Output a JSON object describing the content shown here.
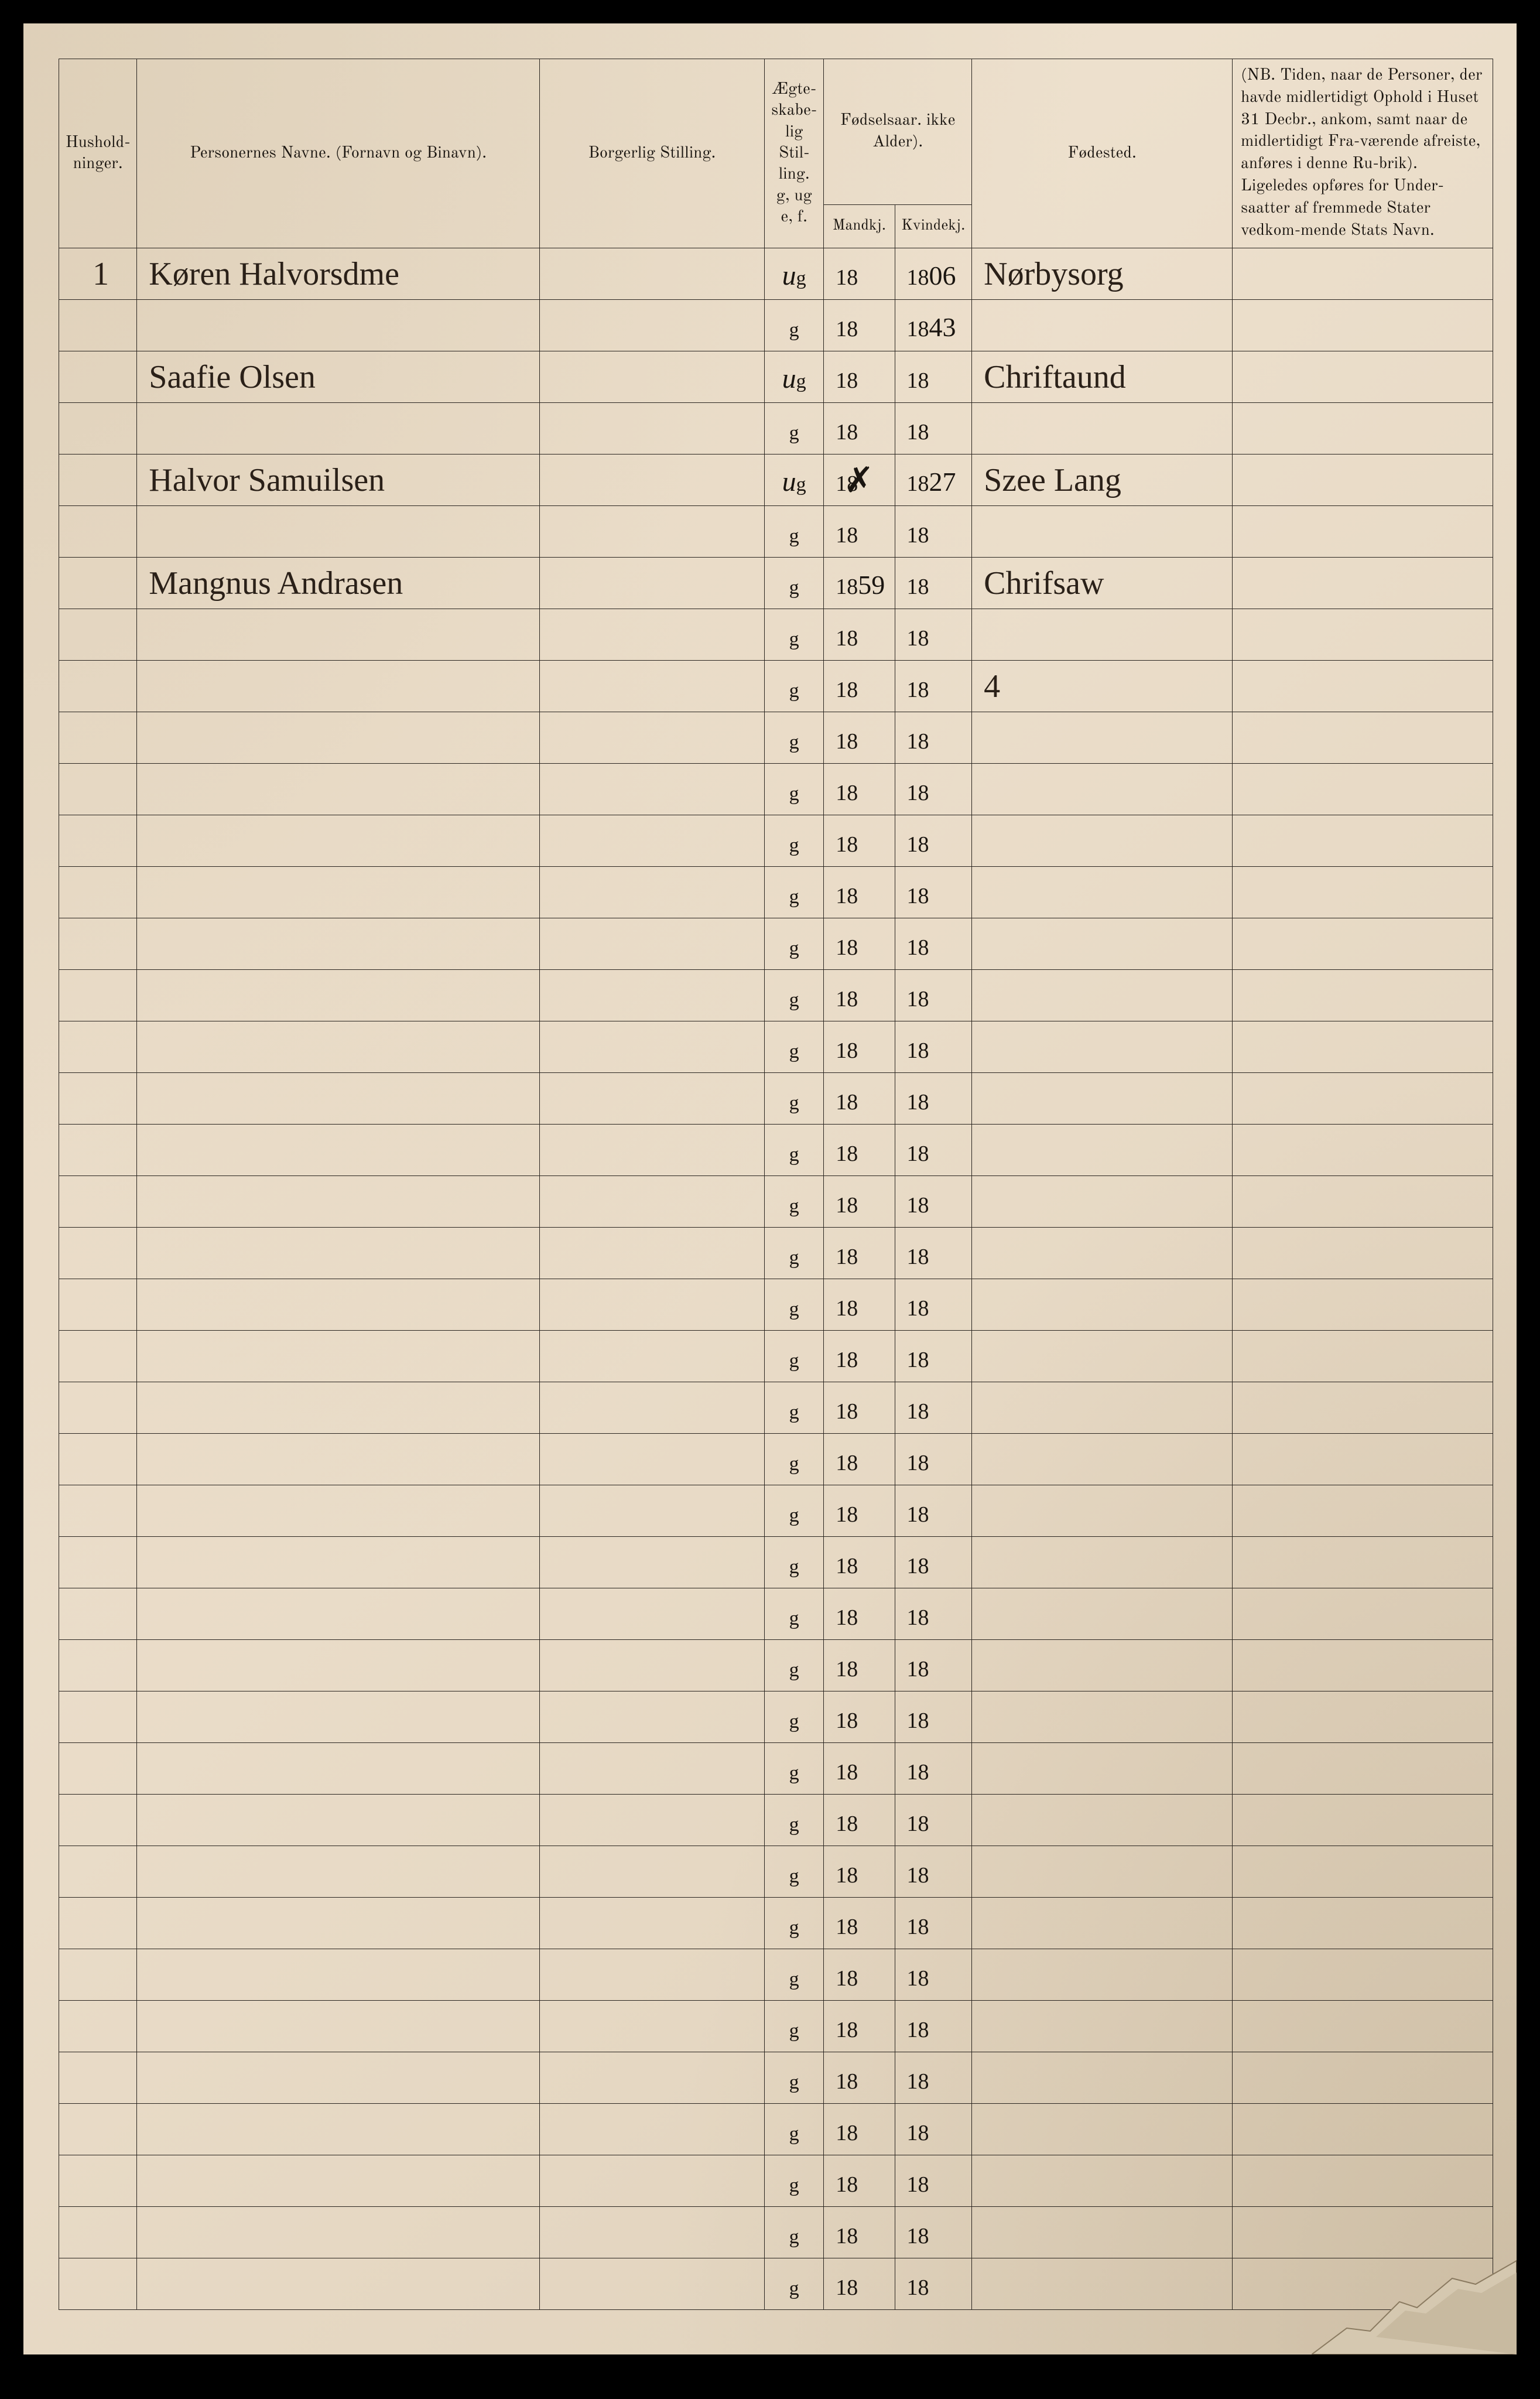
{
  "headers": {
    "hushold": "Hushold-\nninger.",
    "navne": "Personernes Navne.\n(Fornavn og Binavn).",
    "stilling": "Borgerlig Stilling.",
    "aegte": "Ægte-\nskabe-\nlig\nStil-\nling.\ng, ug\ne, f.",
    "fodselsaar": "Fødselsaar.\nikke Alder).",
    "mandkj": "Mandkj.",
    "kvindekj": "Kvindekj.",
    "fodested": "Fødested.",
    "nb": "(NB. Tiden, naar de Personer, der havde midlertidigt Ophold i Huset 31 Decbr., ankom, samt naar de midlertidigt Fra-værende afreiste, anføres i denne Ru-brik). Ligeledes opføres for Under-saatter af fremmede Stater vedkom-mende Stats Navn."
  },
  "printed_g": "g",
  "printed_18": "18",
  "rows": [
    {
      "hushold": "1",
      "navn": "Køren Halvorsdme",
      "aegte_w": "u",
      "mand_w": "",
      "kvind_w": "06",
      "fodested": "Nørbysorg"
    },
    {
      "hushold": "",
      "navn": "",
      "aegte_w": "",
      "mand_w": "",
      "kvind_w": "43",
      "fodested": ""
    },
    {
      "hushold": "",
      "navn": "Saafie Olsen",
      "aegte_w": "u",
      "mand_w": "",
      "kvind_w": "",
      "fodested": "Chriftaund"
    },
    {
      "hushold": "",
      "navn": "",
      "aegte_w": "",
      "mand_w": "",
      "kvind_w": "",
      "fodested": ""
    },
    {
      "hushold": "",
      "navn": "Halvor Samuilsen",
      "aegte_w": "u",
      "mand_w": "",
      "mand_cross": true,
      "kvind_w": "27",
      "fodested": "Szee Lang"
    },
    {
      "hushold": "",
      "navn": "",
      "aegte_w": "",
      "mand_w": "",
      "kvind_w": "",
      "fodested": ""
    },
    {
      "hushold": "",
      "navn": "Mangnus Andrasen",
      "aegte_w": "",
      "mand_w": "59",
      "kvind_w": "",
      "fodested": "Chrifsaw"
    },
    {
      "hushold": "",
      "navn": "",
      "aegte_w": "",
      "mand_w": "",
      "kvind_w": "",
      "fodested": ""
    },
    {
      "hushold": "",
      "navn": "",
      "aegte_w": "",
      "mand_w": "",
      "kvind_w": "",
      "fodested": "4"
    },
    {
      "hushold": "",
      "navn": "",
      "aegte_w": "",
      "mand_w": "",
      "kvind_w": "",
      "fodested": ""
    },
    {
      "hushold": "",
      "navn": "",
      "aegte_w": "",
      "mand_w": "",
      "kvind_w": "",
      "fodested": ""
    },
    {
      "hushold": "",
      "navn": "",
      "aegte_w": "",
      "mand_w": "",
      "kvind_w": "",
      "fodested": ""
    },
    {
      "hushold": "",
      "navn": "",
      "aegte_w": "",
      "mand_w": "",
      "kvind_w": "",
      "fodested": ""
    },
    {
      "hushold": "",
      "navn": "",
      "aegte_w": "",
      "mand_w": "",
      "kvind_w": "",
      "fodested": ""
    },
    {
      "hushold": "",
      "navn": "",
      "aegte_w": "",
      "mand_w": "",
      "kvind_w": "",
      "fodested": ""
    },
    {
      "hushold": "",
      "navn": "",
      "aegte_w": "",
      "mand_w": "",
      "kvind_w": "",
      "fodested": ""
    },
    {
      "hushold": "",
      "navn": "",
      "aegte_w": "",
      "mand_w": "",
      "kvind_w": "",
      "fodested": ""
    },
    {
      "hushold": "",
      "navn": "",
      "aegte_w": "",
      "mand_w": "",
      "kvind_w": "",
      "fodested": ""
    },
    {
      "hushold": "",
      "navn": "",
      "aegte_w": "",
      "mand_w": "",
      "kvind_w": "",
      "fodested": ""
    },
    {
      "hushold": "",
      "navn": "",
      "aegte_w": "",
      "mand_w": "",
      "kvind_w": "",
      "fodested": ""
    },
    {
      "hushold": "",
      "navn": "",
      "aegte_w": "",
      "mand_w": "",
      "kvind_w": "",
      "fodested": ""
    },
    {
      "hushold": "",
      "navn": "",
      "aegte_w": "",
      "mand_w": "",
      "kvind_w": "",
      "fodested": ""
    },
    {
      "hushold": "",
      "navn": "",
      "aegte_w": "",
      "mand_w": "",
      "kvind_w": "",
      "fodested": ""
    },
    {
      "hushold": "",
      "navn": "",
      "aegte_w": "",
      "mand_w": "",
      "kvind_w": "",
      "fodested": ""
    },
    {
      "hushold": "",
      "navn": "",
      "aegte_w": "",
      "mand_w": "",
      "kvind_w": "",
      "fodested": ""
    },
    {
      "hushold": "",
      "navn": "",
      "aegte_w": "",
      "mand_w": "",
      "kvind_w": "",
      "fodested": ""
    },
    {
      "hushold": "",
      "navn": "",
      "aegte_w": "",
      "mand_w": "",
      "kvind_w": "",
      "fodested": ""
    },
    {
      "hushold": "",
      "navn": "",
      "aegte_w": "",
      "mand_w": "",
      "kvind_w": "",
      "fodested": ""
    },
    {
      "hushold": "",
      "navn": "",
      "aegte_w": "",
      "mand_w": "",
      "kvind_w": "",
      "fodested": ""
    },
    {
      "hushold": "",
      "navn": "",
      "aegte_w": "",
      "mand_w": "",
      "kvind_w": "",
      "fodested": ""
    },
    {
      "hushold": "",
      "navn": "",
      "aegte_w": "",
      "mand_w": "",
      "kvind_w": "",
      "fodested": ""
    },
    {
      "hushold": "",
      "navn": "",
      "aegte_w": "",
      "mand_w": "",
      "kvind_w": "",
      "fodested": ""
    },
    {
      "hushold": "",
      "navn": "",
      "aegte_w": "",
      "mand_w": "",
      "kvind_w": "",
      "fodested": ""
    },
    {
      "hushold": "",
      "navn": "",
      "aegte_w": "",
      "mand_w": "",
      "kvind_w": "",
      "fodested": ""
    },
    {
      "hushold": "",
      "navn": "",
      "aegte_w": "",
      "mand_w": "",
      "kvind_w": "",
      "fodested": ""
    },
    {
      "hushold": "",
      "navn": "",
      "aegte_w": "",
      "mand_w": "",
      "kvind_w": "",
      "fodested": ""
    },
    {
      "hushold": "",
      "navn": "",
      "aegte_w": "",
      "mand_w": "",
      "kvind_w": "",
      "fodested": ""
    },
    {
      "hushold": "",
      "navn": "",
      "aegte_w": "",
      "mand_w": "",
      "kvind_w": "",
      "fodested": ""
    },
    {
      "hushold": "",
      "navn": "",
      "aegte_w": "",
      "mand_w": "",
      "kvind_w": "",
      "fodested": ""
    },
    {
      "hushold": "",
      "navn": "",
      "aegte_w": "",
      "mand_w": "",
      "kvind_w": "",
      "fodested": ""
    }
  ],
  "colors": {
    "paper": "#e8dcc8",
    "ink": "#1a1510",
    "line": "#2a2520"
  }
}
